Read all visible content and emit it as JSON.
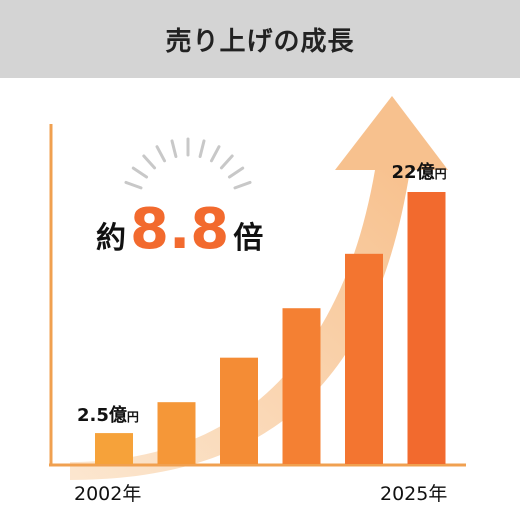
{
  "title": "売り上げの成長",
  "headline": {
    "prefix": "約",
    "number": "8.8",
    "suffix": "倍"
  },
  "chart_data": {
    "type": "bar",
    "categories": [
      "2002年",
      "",
      "",
      "",
      "",
      "2025年"
    ],
    "values": [
      2.5,
      5.0,
      8.6,
      12.6,
      17.0,
      22.0
    ],
    "x_tick_labels": [
      "2002年",
      "2025年"
    ],
    "data_labels": [
      {
        "number": "2.5",
        "unit1": "億",
        "unit2": "円"
      },
      {
        "number": "22",
        "unit1": "億",
        "unit2": "円"
      }
    ],
    "ylim": [
      0,
      22
    ],
    "grid": false,
    "colors": {
      "bar_start": "#f6a23a",
      "bar_end": "#f26a2e",
      "axis": "#f0a050",
      "arrow": "#f7c493",
      "accent": "#f26a2e",
      "rays": "#c8c8c8"
    }
  }
}
